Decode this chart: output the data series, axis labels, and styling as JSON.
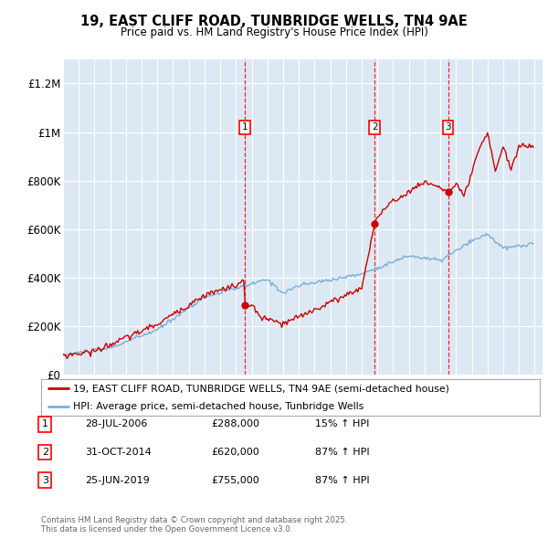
{
  "title_line1": "19, EAST CLIFF ROAD, TUNBRIDGE WELLS, TN4 9AE",
  "title_line2": "Price paid vs. HM Land Registry's House Price Index (HPI)",
  "plot_bg_color": "#dce9f5",
  "ylim": [
    0,
    1300000
  ],
  "yticks": [
    0,
    200000,
    400000,
    600000,
    800000,
    1000000,
    1200000
  ],
  "ytick_labels": [
    "£0",
    "£200K",
    "£400K",
    "£600K",
    "£800K",
    "£1M",
    "£1.2M"
  ],
  "sale_years": [
    2006.58,
    2014.83,
    2019.49
  ],
  "sale_prices": [
    288000,
    620000,
    755000
  ],
  "sale_labels": [
    "1",
    "2",
    "3"
  ],
  "legend_line1": "19, EAST CLIFF ROAD, TUNBRIDGE WELLS, TN4 9AE (semi-detached house)",
  "legend_line2": "HPI: Average price, semi-detached house, Tunbridge Wells",
  "table_rows": [
    {
      "num": "1",
      "date": "28-JUL-2006",
      "price": "£288,000",
      "pct": "15% ↑ HPI"
    },
    {
      "num": "2",
      "date": "31-OCT-2014",
      "price": "£620,000",
      "pct": "87% ↑ HPI"
    },
    {
      "num": "3",
      "date": "25-JUN-2019",
      "price": "£755,000",
      "pct": "87% ↑ HPI"
    }
  ],
  "footer": "Contains HM Land Registry data © Crown copyright and database right 2025.\nThis data is licensed under the Open Government Licence v3.0.",
  "red_color": "#cc0000",
  "blue_color": "#7aaed6",
  "grid_color": "#ffffff"
}
